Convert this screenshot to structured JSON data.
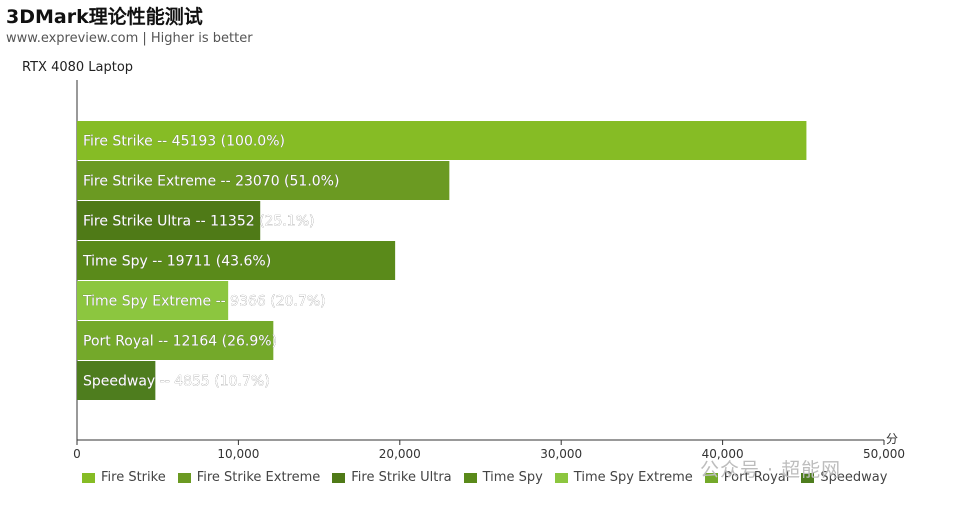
{
  "chart_data": {
    "type": "bar",
    "orientation": "horizontal",
    "title": "3DMark理论性能测试",
    "subtitle": "www.expreview.com | Higher is better",
    "ylabel": "RTX 4080 Laptop",
    "xlabel": "分",
    "xlim": [
      0,
      50000
    ],
    "xticks": [
      "0",
      "10,000",
      "20,000",
      "30,000",
      "40,000",
      "50,000"
    ],
    "grid": false,
    "legend_position": "bottom",
    "categories": [
      "Fire Strike",
      "Fire Strike Extreme",
      "Fire Strike Ultra",
      "Time Spy",
      "Time Spy Extreme",
      "Port Royal",
      "Speedway"
    ],
    "values": [
      45193,
      23070,
      11352,
      19711,
      9366,
      12164,
      4855
    ],
    "bar_labels": [
      "Fire Strike  --  45193 (100.0%)",
      "Fire Strike Extreme  --  23070 (51.0%)",
      "Fire Strike Ultra  --  11352 (25.1%)",
      "Time Spy  --  19711 (43.6%)",
      "Time Spy Extreme  --  9366 (20.7%)",
      "Port Royal  --  12164 (26.9%)",
      "Speedway  --  4855 (10.7%)"
    ],
    "colors": [
      "#86bc25",
      "#6b9a22",
      "#4f7a17",
      "#5a8a1a",
      "#8cc63f",
      "#74a92a",
      "#4e7d1e"
    ]
  },
  "watermark": "公众号 · 超能网"
}
